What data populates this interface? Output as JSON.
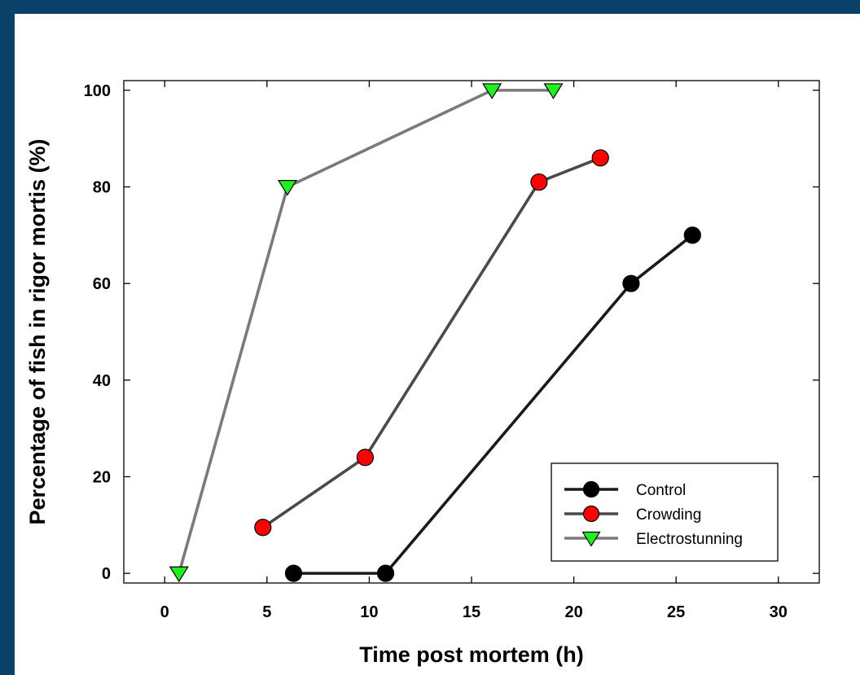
{
  "chart_data": {
    "type": "line",
    "title": "",
    "xlabel": "Time post mortem (h)",
    "ylabel": "Percentage of fish in rigor mortis (%)",
    "xlim": [
      -2,
      32
    ],
    "ylim": [
      -2,
      102
    ],
    "x_ticks": [
      0,
      5,
      10,
      15,
      20,
      25,
      30
    ],
    "y_ticks": [
      0,
      20,
      40,
      60,
      80,
      100
    ],
    "grid": false,
    "legend_position": "bottom-right",
    "series": [
      {
        "name": "Control",
        "marker": "circle",
        "marker_color": "#000000",
        "line_color": "#1a1a1a",
        "x": [
          6.3,
          10.8,
          22.8,
          25.8
        ],
        "y": [
          0,
          0,
          60,
          70
        ]
      },
      {
        "name": "Crowding",
        "marker": "circle",
        "marker_color": "#ff0000",
        "line_color": "#4a4a4a",
        "x": [
          4.8,
          9.8,
          18.3,
          21.3
        ],
        "y": [
          9.5,
          24,
          81,
          86
        ]
      },
      {
        "name": "Electrostunning",
        "marker": "triangle-down",
        "marker_color": "#22ee22",
        "line_color": "#7a7a7a",
        "x": [
          0.7,
          6.0,
          16.0,
          19.0
        ],
        "y": [
          0,
          80,
          100,
          100
        ]
      }
    ]
  }
}
